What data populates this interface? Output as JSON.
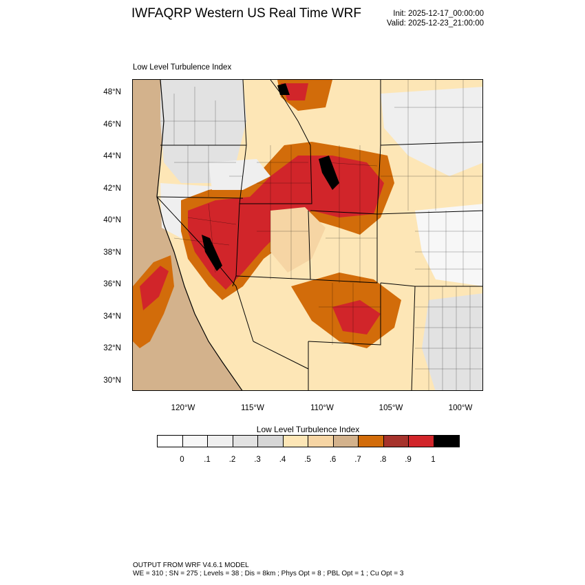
{
  "header": {
    "title": "IWFAQRP Western US Real Time WRF",
    "init": "Init: 2025-12-17_00:00:00",
    "valid": "Valid: 2025-12-23_21:00:00"
  },
  "map": {
    "field_label": "Low Level Turbulence Index",
    "lat_labels": [
      "48°N",
      "46°N",
      "44°N",
      "42°N",
      "40°N",
      "38°N",
      "36°N",
      "34°N",
      "32°N",
      "30°N"
    ],
    "lon_labels": [
      "120°W",
      "115°W",
      "110°W",
      "105°W",
      "100°W"
    ]
  },
  "colorbar": {
    "title": "Low Level Turbulence Index",
    "colors": [
      "#ffffff",
      "#f7f7f7",
      "#efefef",
      "#e2e2e2",
      "#d6d6d6",
      "#fde6b6",
      "#f6d5a4",
      "#d3b28c",
      "#d26c0a",
      "#a6332c",
      "#d1252a",
      "#000000"
    ],
    "tick_labels": [
      "0",
      ".1",
      ".2",
      ".3",
      ".4",
      ".5",
      ".6",
      ".7",
      ".8",
      ".9",
      "1"
    ]
  },
  "footer": {
    "line1": "OUTPUT FROM WRF V4.6.1 MODEL",
    "line2": "WE = 310 ; SN = 275 ; Levels = 38 ; Dis = 8km ; Phys Opt = 8 ; PBL Opt = 1 ; Cu Opt = 3"
  }
}
